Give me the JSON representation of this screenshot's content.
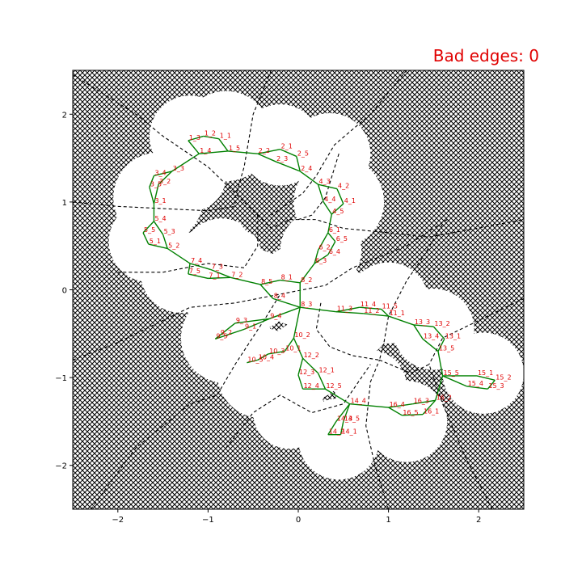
{
  "status": {
    "bad_edges_text": "Bad edges: 0",
    "color": "#e00000"
  },
  "colors": {
    "edge": "#008000",
    "label": "#e00000",
    "boundary": "#000000",
    "obstacle_fill": "#ffffff",
    "free_region": "#ffffff"
  },
  "chart_data": {
    "type": "scatter",
    "title": "",
    "xlabel": "",
    "ylabel": "",
    "xlim": [
      -2.5,
      2.5
    ],
    "ylim": [
      -2.5,
      2.5
    ],
    "xticks": [
      -2,
      -1,
      0,
      1,
      2
    ],
    "yticks": [
      -2,
      -1,
      0,
      1,
      2
    ],
    "grid": false,
    "background": "cross-hatched obstacle region with white free space disks",
    "free_disks": [
      {
        "x": -0.8,
        "y": 1.75,
        "r": 0.5
      },
      {
        "x": -0.2,
        "y": 1.65,
        "r": 0.45
      },
      {
        "x": 0.35,
        "y": 1.55,
        "r": 0.45
      },
      {
        "x": 0.45,
        "y": 1.0,
        "r": 0.5
      },
      {
        "x": -1.2,
        "y": 1.75,
        "r": 0.45
      },
      {
        "x": -1.55,
        "y": 1.05,
        "r": 0.5
      },
      {
        "x": -1.65,
        "y": 0.55,
        "r": 0.45
      },
      {
        "x": -1.3,
        "y": 0.2,
        "r": 0.45
      },
      {
        "x": -0.85,
        "y": 0.35,
        "r": 0.45
      },
      {
        "x": -0.5,
        "y": 0.0,
        "r": 0.45
      },
      {
        "x": 0.0,
        "y": 0.05,
        "r": 0.45
      },
      {
        "x": 0.25,
        "y": 0.45,
        "r": 0.45
      },
      {
        "x": -0.8,
        "y": -0.55,
        "r": 0.5
      },
      {
        "x": -0.4,
        "y": -0.95,
        "r": 0.5
      },
      {
        "x": 0.1,
        "y": -0.8,
        "r": 0.45
      },
      {
        "x": 0.55,
        "y": -0.3,
        "r": 0.5
      },
      {
        "x": 1.0,
        "y": -0.15,
        "r": 0.45
      },
      {
        "x": 1.5,
        "y": -0.45,
        "r": 0.45
      },
      {
        "x": 2.05,
        "y": -0.95,
        "r": 0.45
      },
      {
        "x": 1.2,
        "y": -1.5,
        "r": 0.45
      },
      {
        "x": 0.45,
        "y": -1.7,
        "r": 0.45
      },
      {
        "x": -0.1,
        "y": -1.4,
        "r": 0.4
      },
      {
        "x": 0.8,
        "y": -1.1,
        "r": 0.4
      },
      {
        "x": -1.2,
        "y": 1.3,
        "r": 0.4
      }
    ],
    "hatched_holes": [
      {
        "x": -0.45,
        "y": 0.83,
        "r": 0.2
      },
      {
        "x": -0.7,
        "y": 0.92,
        "r": 0.12
      }
    ],
    "boundaries": [
      [
        [
          -2.5,
          2.45
        ],
        [
          -1.8,
          2.0
        ],
        [
          -1.5,
          1.75
        ],
        [
          -1.0,
          1.4
        ],
        [
          -0.6,
          1.0
        ],
        [
          -0.45,
          0.85
        ]
      ],
      [
        [
          -0.3,
          2.5
        ],
        [
          -0.5,
          2.0
        ],
        [
          -0.6,
          1.4
        ],
        [
          -0.7,
          1.05
        ],
        [
          -0.7,
          0.95
        ]
      ],
      [
        [
          -2.5,
          1.0
        ],
        [
          -2.0,
          0.95
        ],
        [
          -1.0,
          0.9
        ],
        [
          -0.7,
          0.95
        ]
      ],
      [
        [
          -0.45,
          0.85
        ],
        [
          -0.3,
          0.7
        ],
        [
          -0.1,
          0.8
        ],
        [
          0.2,
          0.8
        ],
        [
          0.5,
          0.7
        ],
        [
          1.0,
          0.65
        ],
        [
          1.45,
          0.6
        ],
        [
          2.5,
          0.8
        ]
      ],
      [
        [
          0.45,
          1.55
        ],
        [
          0.3,
          1.05
        ],
        [
          0.15,
          0.85
        ],
        [
          0.0,
          0.8
        ]
      ],
      [
        [
          1.2,
          2.5
        ],
        [
          0.8,
          2.0
        ],
        [
          0.4,
          1.65
        ],
        [
          0.2,
          1.3
        ],
        [
          0.05,
          1.1
        ],
        [
          -0.3,
          0.85
        ]
      ],
      [
        [
          -0.45,
          0.85
        ],
        [
          -0.45,
          0.5
        ],
        [
          -0.6,
          0.25
        ],
        [
          -1.0,
          0.3
        ],
        [
          -1.5,
          0.2
        ],
        [
          -2.0,
          0.2
        ]
      ],
      [
        [
          1.6,
          0.75
        ],
        [
          1.4,
          0.4
        ],
        [
          1.2,
          0.1
        ],
        [
          1.0,
          -0.3
        ],
        [
          0.95,
          -0.6
        ],
        [
          0.9,
          -0.8
        ]
      ],
      [
        [
          -2.5,
          -0.8
        ],
        [
          -2.0,
          -0.6
        ],
        [
          -1.4,
          -0.3
        ],
        [
          -1.2,
          -0.2
        ],
        [
          -0.7,
          -0.15
        ],
        [
          -0.2,
          -0.05
        ],
        [
          0.3,
          0.05
        ],
        [
          0.6,
          0.25
        ],
        [
          1.2,
          0.5
        ],
        [
          1.65,
          0.8
        ]
      ],
      [
        [
          0.25,
          -0.15
        ],
        [
          0.2,
          -0.45
        ],
        [
          0.35,
          -0.65
        ],
        [
          0.6,
          -0.75
        ],
        [
          0.9,
          -0.8
        ]
      ],
      [
        [
          -2.3,
          -2.5
        ],
        [
          -1.8,
          -1.8
        ],
        [
          -1.2,
          -1.3
        ],
        [
          -0.9,
          -1.2
        ],
        [
          -0.7,
          -0.85
        ],
        [
          -0.35,
          -0.3
        ],
        [
          -0.2,
          -0.05
        ]
      ],
      [
        [
          -0.8,
          -1.8
        ],
        [
          -0.5,
          -1.4
        ],
        [
          -0.2,
          -1.2
        ],
        [
          0.15,
          -1.4
        ],
        [
          0.5,
          -1.3
        ],
        [
          0.7,
          -1.0
        ],
        [
          0.8,
          -0.85
        ]
      ],
      [
        [
          1.0,
          -2.5
        ],
        [
          0.85,
          -2.0
        ],
        [
          0.75,
          -1.55
        ],
        [
          0.8,
          -1.05
        ],
        [
          0.9,
          -0.8
        ]
      ],
      [
        [
          2.15,
          -2.5
        ],
        [
          1.85,
          -1.9
        ],
        [
          1.6,
          -1.3
        ],
        [
          1.45,
          -0.85
        ],
        [
          1.25,
          -0.95
        ],
        [
          0.9,
          -0.8
        ]
      ],
      [
        [
          2.5,
          -0.1
        ],
        [
          2.0,
          -0.35
        ],
        [
          1.6,
          -0.55
        ],
        [
          1.45,
          -0.85
        ]
      ]
    ],
    "nodes": [
      {
        "name": "1_1",
        "x": -0.88,
        "y": 1.72
      },
      {
        "name": "1_2",
        "x": -1.05,
        "y": 1.75
      },
      {
        "name": "1_3",
        "x": -1.22,
        "y": 1.7
      },
      {
        "name": "1_4",
        "x": -1.1,
        "y": 1.55
      },
      {
        "name": "1_5",
        "x": -0.78,
        "y": 1.58
      },
      {
        "name": "2_1",
        "x": -0.2,
        "y": 1.6
      },
      {
        "name": "2_2",
        "x": -0.45,
        "y": 1.55
      },
      {
        "name": "2_3",
        "x": -0.25,
        "y": 1.46
      },
      {
        "name": "2_4",
        "x": 0.02,
        "y": 1.35
      },
      {
        "name": "2_5",
        "x": -0.02,
        "y": 1.52
      },
      {
        "name": "3_1",
        "x": -1.6,
        "y": 0.98
      },
      {
        "name": "3_2",
        "x": -1.55,
        "y": 1.2
      },
      {
        "name": "3_3",
        "x": -1.4,
        "y": 1.35
      },
      {
        "name": "3_4",
        "x": -1.6,
        "y": 1.3
      },
      {
        "name": "3_5",
        "x": -1.65,
        "y": 1.17
      },
      {
        "name": "4_1",
        "x": 0.5,
        "y": 0.98
      },
      {
        "name": "4_2",
        "x": 0.43,
        "y": 1.15
      },
      {
        "name": "4_3",
        "x": 0.22,
        "y": 1.2
      },
      {
        "name": "4_4",
        "x": 0.28,
        "y": 1.0
      },
      {
        "name": "4_5",
        "x": 0.37,
        "y": 0.86
      },
      {
        "name": "5_1",
        "x": -1.66,
        "y": 0.52
      },
      {
        "name": "5_2",
        "x": -1.45,
        "y": 0.47
      },
      {
        "name": "5_3",
        "x": -1.5,
        "y": 0.63
      },
      {
        "name": "5_4",
        "x": -1.6,
        "y": 0.78
      },
      {
        "name": "5_5",
        "x": -1.72,
        "y": 0.65
      },
      {
        "name": "6_1",
        "x": 0.33,
        "y": 0.65
      },
      {
        "name": "6_2",
        "x": 0.22,
        "y": 0.45
      },
      {
        "name": "6_3",
        "x": 0.18,
        "y": 0.3
      },
      {
        "name": "6_4",
        "x": 0.33,
        "y": 0.4
      },
      {
        "name": "6_5",
        "x": 0.41,
        "y": 0.55
      },
      {
        "name": "7_1",
        "x": -1.0,
        "y": 0.13
      },
      {
        "name": "7_2",
        "x": -0.75,
        "y": 0.14
      },
      {
        "name": "7_3",
        "x": -0.97,
        "y": 0.23
      },
      {
        "name": "7_4",
        "x": -1.2,
        "y": 0.3
      },
      {
        "name": "7_5",
        "x": -1.22,
        "y": 0.18
      },
      {
        "name": "8_1",
        "x": -0.2,
        "y": 0.11
      },
      {
        "name": "8_2",
        "x": 0.02,
        "y": 0.08
      },
      {
        "name": "8_3",
        "x": 0.02,
        "y": -0.2
      },
      {
        "name": "8_4",
        "x": -0.28,
        "y": -0.1
      },
      {
        "name": "8_5",
        "x": -0.42,
        "y": 0.06
      },
      {
        "name": "9_1",
        "x": -0.6,
        "y": -0.45
      },
      {
        "name": "9_2",
        "x": -0.87,
        "y": -0.52
      },
      {
        "name": "9_3",
        "x": -0.7,
        "y": -0.38
      },
      {
        "name": "9_4",
        "x": -0.32,
        "y": -0.33
      },
      {
        "name": "9_5",
        "x": -0.92,
        "y": -0.56
      },
      {
        "name": "10_1",
        "x": -0.15,
        "y": -0.7
      },
      {
        "name": "10_2",
        "x": -0.05,
        "y": -0.55
      },
      {
        "name": "10_3",
        "x": -0.33,
        "y": -0.73
      },
      {
        "name": "10_4",
        "x": -0.45,
        "y": -0.8
      },
      {
        "name": "10_5",
        "x": -0.57,
        "y": -0.83
      },
      {
        "name": "11_1",
        "x": 1.0,
        "y": -0.3
      },
      {
        "name": "11_2",
        "x": 0.72,
        "y": -0.27
      },
      {
        "name": "11_3",
        "x": 0.42,
        "y": -0.25
      },
      {
        "name": "11_4",
        "x": 0.68,
        "y": -0.2
      },
      {
        "name": "11_5",
        "x": 0.92,
        "y": -0.22
      },
      {
        "name": "12_1",
        "x": 0.22,
        "y": -0.95
      },
      {
        "name": "12_2",
        "x": 0.05,
        "y": -0.78
      },
      {
        "name": "12_3",
        "x": 0.0,
        "y": -0.97
      },
      {
        "name": "12_4",
        "x": 0.05,
        "y": -1.13
      },
      {
        "name": "12_5",
        "x": 0.3,
        "y": -1.13
      },
      {
        "name": "13_1",
        "x": 1.62,
        "y": -0.56
      },
      {
        "name": "13_2",
        "x": 1.5,
        "y": -0.42
      },
      {
        "name": "13_3",
        "x": 1.28,
        "y": -0.4
      },
      {
        "name": "13_4",
        "x": 1.38,
        "y": -0.56
      },
      {
        "name": "13_5",
        "x": 1.55,
        "y": -0.7
      },
      {
        "name": "14_1",
        "x": 0.47,
        "y": -1.65
      },
      {
        "name": "14_2",
        "x": 0.33,
        "y": -1.65
      },
      {
        "name": "14_3",
        "x": 0.42,
        "y": -1.5
      },
      {
        "name": "14_4",
        "x": 0.57,
        "y": -1.3
      },
      {
        "name": "14_5",
        "x": 0.5,
        "y": -1.5
      },
      {
        "name": "15_1",
        "x": 1.98,
        "y": -0.98
      },
      {
        "name": "15_2",
        "x": 2.18,
        "y": -1.03
      },
      {
        "name": "15_3",
        "x": 2.1,
        "y": -1.13
      },
      {
        "name": "15_4",
        "x": 1.87,
        "y": -1.1
      },
      {
        "name": "15_5",
        "x": 1.6,
        "y": -0.98
      },
      {
        "name": "16_1",
        "x": 1.38,
        "y": -1.42
      },
      {
        "name": "16_2",
        "x": 1.52,
        "y": -1.26
      },
      {
        "name": "16_3",
        "x": 1.27,
        "y": -1.3
      },
      {
        "name": "16_4",
        "x": 1.0,
        "y": -1.34
      },
      {
        "name": "16_5",
        "x": 1.15,
        "y": -1.43
      }
    ],
    "edges": [
      [
        "1_1",
        "1_5"
      ],
      [
        "1_1",
        "1_2"
      ],
      [
        "1_2",
        "1_3"
      ],
      [
        "1_3",
        "1_4"
      ],
      [
        "1_4",
        "1_5"
      ],
      [
        "1_5",
        "2_2"
      ],
      [
        "2_2",
        "2_1"
      ],
      [
        "2_1",
        "2_5"
      ],
      [
        "2_5",
        "2_4"
      ],
      [
        "2_2",
        "2_3"
      ],
      [
        "2_3",
        "2_4"
      ],
      [
        "1_4",
        "3_3"
      ],
      [
        "3_3",
        "3_4"
      ],
      [
        "3_4",
        "3_5"
      ],
      [
        "3_5",
        "3_1"
      ],
      [
        "3_3",
        "3_2"
      ],
      [
        "3_2",
        "3_1"
      ],
      [
        "2_4",
        "4_3"
      ],
      [
        "4_3",
        "4_2"
      ],
      [
        "4_2",
        "4_1"
      ],
      [
        "4_1",
        "4_5"
      ],
      [
        "4_3",
        "4_4"
      ],
      [
        "4_4",
        "4_5"
      ],
      [
        "3_1",
        "5_4"
      ],
      [
        "5_4",
        "5_5"
      ],
      [
        "5_5",
        "5_1"
      ],
      [
        "5_1",
        "5_2"
      ],
      [
        "5_4",
        "5_3"
      ],
      [
        "5_3",
        "5_2"
      ],
      [
        "4_5",
        "6_1"
      ],
      [
        "6_1",
        "6_5"
      ],
      [
        "6_5",
        "6_4"
      ],
      [
        "6_4",
        "6_3"
      ],
      [
        "6_1",
        "6_2"
      ],
      [
        "6_2",
        "6_3"
      ],
      [
        "5_2",
        "7_4"
      ],
      [
        "7_4",
        "7_5"
      ],
      [
        "7_5",
        "7_1"
      ],
      [
        "7_1",
        "7_2"
      ],
      [
        "7_4",
        "7_3"
      ],
      [
        "7_3",
        "7_2"
      ],
      [
        "7_2",
        "8_5"
      ],
      [
        "8_5",
        "8_1"
      ],
      [
        "8_1",
        "8_2"
      ],
      [
        "8_2",
        "8_3"
      ],
      [
        "8_5",
        "8_4"
      ],
      [
        "8_4",
        "8_3"
      ],
      [
        "6_3",
        "8_2"
      ],
      [
        "8_3",
        "9_4"
      ],
      [
        "9_4",
        "9_3"
      ],
      [
        "9_3",
        "9_2"
      ],
      [
        "9_2",
        "9_5"
      ],
      [
        "9_4",
        "9_1"
      ],
      [
        "9_1",
        "9_5"
      ],
      [
        "8_3",
        "10_2"
      ],
      [
        "10_2",
        "10_1"
      ],
      [
        "10_1",
        "10_3"
      ],
      [
        "10_3",
        "10_4"
      ],
      [
        "10_4",
        "10_5"
      ],
      [
        "8_3",
        "11_3"
      ],
      [
        "11_3",
        "11_4"
      ],
      [
        "11_4",
        "11_5"
      ],
      [
        "11_5",
        "11_1"
      ],
      [
        "11_3",
        "11_2"
      ],
      [
        "11_2",
        "11_1"
      ],
      [
        "10_2",
        "12_2"
      ],
      [
        "12_2",
        "12_3"
      ],
      [
        "12_3",
        "12_4"
      ],
      [
        "12_4",
        "12_5"
      ],
      [
        "12_2",
        "12_1"
      ],
      [
        "12_1",
        "12_5"
      ],
      [
        "11_1",
        "13_3"
      ],
      [
        "13_3",
        "13_2"
      ],
      [
        "13_2",
        "13_1"
      ],
      [
        "13_1",
        "13_5"
      ],
      [
        "13_3",
        "13_4"
      ],
      [
        "13_4",
        "13_5"
      ],
      [
        "12_5",
        "14_4"
      ],
      [
        "14_4",
        "14_3"
      ],
      [
        "14_3",
        "14_2"
      ],
      [
        "14_2",
        "14_1"
      ],
      [
        "14_4",
        "14_5"
      ],
      [
        "14_5",
        "14_1"
      ],
      [
        "13_5",
        "15_5"
      ],
      [
        "15_5",
        "15_1"
      ],
      [
        "15_1",
        "15_2"
      ],
      [
        "15_2",
        "15_3"
      ],
      [
        "15_5",
        "15_4"
      ],
      [
        "15_4",
        "15_3"
      ],
      [
        "15_5",
        "16_2"
      ],
      [
        "16_2",
        "16_3"
      ],
      [
        "16_3",
        "16_4"
      ],
      [
        "16_4",
        "16_5"
      ],
      [
        "16_2",
        "16_1"
      ],
      [
        "16_1",
        "16_5"
      ],
      [
        "14_4",
        "16_4"
      ]
    ]
  }
}
